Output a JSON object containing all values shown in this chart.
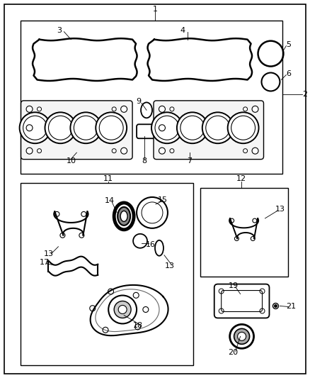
{
  "background_color": "#ffffff",
  "line_color": "#000000",
  "text_color": "#000000",
  "font_size": 8.0,
  "fig_w": 4.38,
  "fig_h": 5.33,
  "dpi": 100
}
